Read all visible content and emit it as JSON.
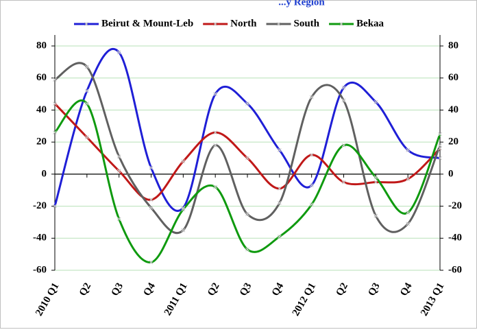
{
  "title_fragment": "...y Region",
  "chart_data": {
    "type": "line",
    "title": "...y Region",
    "xlabel": "",
    "ylabel": "",
    "ylim": [
      -60,
      80
    ],
    "yticks": [
      -60,
      -40,
      -20,
      0,
      20,
      40,
      60,
      80
    ],
    "grid": true,
    "legend_position": "top",
    "categories": [
      "2010 Q1",
      "Q2",
      "Q3",
      "Q4",
      "2011 Q1",
      "Q2",
      "Q3",
      "Q4",
      "2012 Q1",
      "Q2",
      "Q3",
      "Q4",
      "2013 Q1"
    ],
    "series": [
      {
        "name": "Beirut & Mount-Leb",
        "color": "#1f1fd6",
        "values": [
          -20,
          52,
          76,
          4,
          -21,
          50,
          44,
          15,
          -7,
          54,
          45,
          15,
          10
        ]
      },
      {
        "name": "North",
        "color": "#c01818",
        "values": [
          44,
          23,
          2,
          -16,
          8,
          26,
          10,
          -9,
          12,
          -5,
          -5,
          -3,
          16
        ]
      },
      {
        "name": "South",
        "color": "#606060",
        "values": [
          59,
          67,
          11,
          -21,
          -35,
          18,
          -25,
          -18,
          48,
          46,
          -26,
          -31,
          18
        ]
      },
      {
        "name": "Bekaa",
        "color": "#0f9a0f",
        "values": [
          26,
          44,
          -28,
          -55,
          -22,
          -8,
          -47,
          -39,
          -19,
          18,
          -2,
          -24,
          25
        ]
      }
    ]
  }
}
